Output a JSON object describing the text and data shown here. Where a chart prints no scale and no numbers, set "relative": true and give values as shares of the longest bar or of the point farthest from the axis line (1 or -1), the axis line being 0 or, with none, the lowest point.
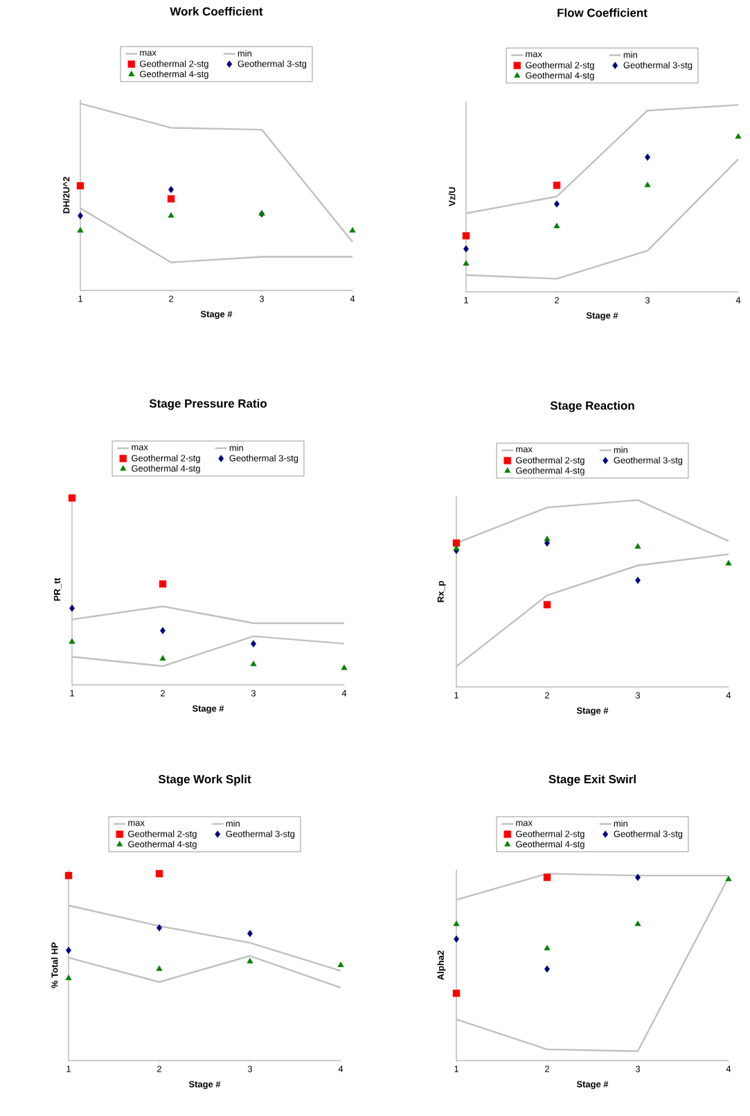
{
  "chart_data": [
    {
      "type": "scatter",
      "title": "Work Coefficient",
      "xlabel": "Stage #",
      "ylabel": "DH/2U^2",
      "categories": [
        "1",
        "2",
        "3",
        "4"
      ],
      "relative": true,
      "tick_labels": "x",
      "legend": "top",
      "series": [
        {
          "name": "max",
          "type": "line",
          "color": "#c0c0c0",
          "values": [
            1.0,
            0.87,
            0.86,
            0.26
          ]
        },
        {
          "name": "min",
          "type": "line",
          "color": "#c0c0c0",
          "values": [
            0.44,
            0.15,
            0.18,
            0.18
          ]
        },
        {
          "name": "Geothermal 2-stg",
          "marker": "square",
          "color": "#ff0000",
          "values": [
            0.56,
            0.49,
            null,
            null
          ]
        },
        {
          "name": "Geothermal 3-stg",
          "marker": "diamond",
          "color": "#000080",
          "values": [
            0.4,
            0.54,
            0.41,
            null
          ]
        },
        {
          "name": "Geothermal 4-stg",
          "marker": "triangle",
          "color": "#008000",
          "values": [
            0.32,
            0.4,
            0.41,
            0.32
          ]
        }
      ]
    },
    {
      "type": "scatter",
      "title": "Flow Coefficient",
      "xlabel": "Stage #",
      "ylabel": "Vz/U",
      "categories": [
        "1",
        "2",
        "3",
        "4"
      ],
      "relative": true,
      "tick_labels": "x",
      "legend": "top",
      "series": [
        {
          "name": "max",
          "type": "line",
          "color": "#c0c0c0",
          "values": [
            0.42,
            0.51,
            0.97,
            1.0
          ]
        },
        {
          "name": "min",
          "type": "line",
          "color": "#c0c0c0",
          "values": [
            0.09,
            0.07,
            0.22,
            0.71
          ]
        },
        {
          "name": "Geothermal 2-stg",
          "marker": "square",
          "color": "#ff0000",
          "values": [
            0.3,
            0.57,
            null,
            null
          ]
        },
        {
          "name": "Geothermal 3-stg",
          "marker": "diamond",
          "color": "#000080",
          "values": [
            0.23,
            0.47,
            0.72,
            null
          ]
        },
        {
          "name": "Geothermal 4-stg",
          "marker": "triangle",
          "color": "#008000",
          "values": [
            0.15,
            0.35,
            0.57,
            0.83
          ]
        }
      ]
    },
    {
      "type": "scatter",
      "title": "Stage Pressure Ratio",
      "xlabel": "Stage #",
      "ylabel": "PR_tt",
      "categories": [
        "1",
        "2",
        "3",
        "4"
      ],
      "relative": true,
      "tick_labels": "x",
      "legend": "top",
      "series": [
        {
          "name": "max",
          "type": "line",
          "color": "#c0c0c0",
          "values": [
            0.35,
            0.42,
            0.33,
            0.33
          ]
        },
        {
          "name": "min",
          "type": "line",
          "color": "#c0c0c0",
          "values": [
            0.15,
            0.1,
            0.26,
            0.22
          ]
        },
        {
          "name": "Geothermal 2-stg",
          "marker": "square",
          "color": "#ff0000",
          "values": [
            1.0,
            0.54,
            null,
            null
          ]
        },
        {
          "name": "Geothermal 3-stg",
          "marker": "diamond",
          "color": "#000080",
          "values": [
            0.41,
            0.29,
            0.22,
            null
          ]
        },
        {
          "name": "Geothermal 4-stg",
          "marker": "triangle",
          "color": "#008000",
          "values": [
            0.23,
            0.14,
            0.11,
            0.09
          ]
        }
      ]
    },
    {
      "type": "scatter",
      "title": "Stage Reaction",
      "xlabel": "Stage #",
      "ylabel": "Rx_p",
      "categories": [
        "1",
        "2",
        "3",
        "4"
      ],
      "relative": true,
      "tick_labels": "x",
      "legend": "top",
      "series": [
        {
          "name": "max",
          "type": "line",
          "color": "#c0c0c0",
          "values": [
            0.77,
            0.96,
            1.0,
            0.78
          ]
        },
        {
          "name": "min",
          "type": "line",
          "color": "#c0c0c0",
          "values": [
            0.11,
            0.49,
            0.65,
            0.71
          ]
        },
        {
          "name": "Geothermal 2-stg",
          "marker": "square",
          "color": "#ff0000",
          "values": [
            0.77,
            0.44,
            null,
            null
          ]
        },
        {
          "name": "Geothermal 3-stg",
          "marker": "diamond",
          "color": "#000080",
          "values": [
            0.73,
            0.77,
            0.57,
            null
          ]
        },
        {
          "name": "Geothermal 4-stg",
          "marker": "triangle",
          "color": "#008000",
          "values": [
            0.74,
            0.79,
            0.75,
            0.66
          ]
        }
      ]
    },
    {
      "type": "scatter",
      "title": "Stage Work Split",
      "xlabel": "Stage #",
      "ylabel": "% Total HP",
      "categories": [
        "1",
        "2",
        "3",
        "4"
      ],
      "relative": true,
      "tick_labels": "x",
      "legend": "top",
      "series": [
        {
          "name": "max",
          "type": "line",
          "color": "#c0c0c0",
          "values": [
            0.83,
            0.72,
            0.63,
            0.48
          ]
        },
        {
          "name": "min",
          "type": "line",
          "color": "#c0c0c0",
          "values": [
            0.55,
            0.42,
            0.56,
            0.39
          ]
        },
        {
          "name": "Geothermal 2-stg",
          "marker": "square",
          "color": "#ff0000",
          "values": [
            0.99,
            1.0,
            null,
            null
          ]
        },
        {
          "name": "Geothermal 3-stg",
          "marker": "diamond",
          "color": "#000080",
          "values": [
            0.59,
            0.71,
            0.68,
            null
          ]
        },
        {
          "name": "Geothermal 4-stg",
          "marker": "triangle",
          "color": "#008000",
          "values": [
            0.44,
            0.49,
            0.53,
            0.51
          ]
        }
      ]
    },
    {
      "type": "scatter",
      "title": "Stage Exit Swirl",
      "xlabel": "Stage #",
      "ylabel": "Alpha2",
      "categories": [
        "1",
        "2",
        "3",
        "4"
      ],
      "relative": true,
      "tick_labels": "x",
      "legend": "top",
      "series": [
        {
          "name": "max",
          "type": "line",
          "color": "#c0c0c0",
          "values": [
            0.86,
            1.0,
            0.99,
            0.99
          ]
        },
        {
          "name": "min",
          "type": "line",
          "color": "#c0c0c0",
          "values": [
            0.22,
            0.06,
            0.05,
            0.98
          ]
        },
        {
          "name": "Geothermal 2-stg",
          "marker": "square",
          "color": "#ff0000",
          "values": [
            0.36,
            0.98,
            null,
            null
          ]
        },
        {
          "name": "Geothermal 3-stg",
          "marker": "diamond",
          "color": "#000080",
          "values": [
            0.65,
            0.49,
            0.98,
            null
          ]
        },
        {
          "name": "Geothermal 4-stg",
          "marker": "triangle",
          "color": "#008000",
          "values": [
            0.73,
            0.6,
            0.73,
            0.97
          ]
        }
      ]
    }
  ]
}
